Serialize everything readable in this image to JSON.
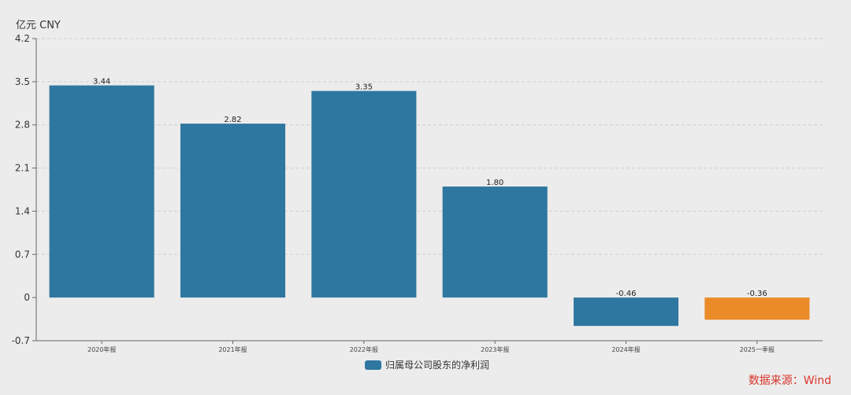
{
  "chart_data": {
    "type": "bar",
    "unit_label": "亿元  CNY",
    "categories": [
      "2020年报",
      "2021年报",
      "2022年报",
      "2023年报",
      "2024年报",
      "2025一季报"
    ],
    "series": [
      {
        "name": "归属母公司股东的净利润",
        "values": [
          3.44,
          2.82,
          3.35,
          1.8,
          -0.46,
          -0.36
        ],
        "labels": [
          "3.44",
          "2.82",
          "3.35",
          "1.80",
          "-0.46",
          "-0.36"
        ]
      }
    ],
    "bar_colors": [
      "#2e77a0",
      "#2e77a0",
      "#2e77a0",
      "#2e77a0",
      "#2e77a0",
      "#ea8b28"
    ],
    "legend_color": "#2e77a0",
    "ylim": [
      -0.7,
      4.2
    ],
    "yticks": [
      4.2,
      3.5,
      2.8,
      2.1,
      1.4,
      0.7,
      0,
      -0.7
    ],
    "ytick_labels": [
      "4.2",
      "3.5",
      "2.8",
      "2.1",
      "1.4",
      "0.7",
      "0",
      "-0.7"
    ],
    "grid": true,
    "legend_position": "bottom-center"
  },
  "source": {
    "text": "数据来源：Wind"
  }
}
